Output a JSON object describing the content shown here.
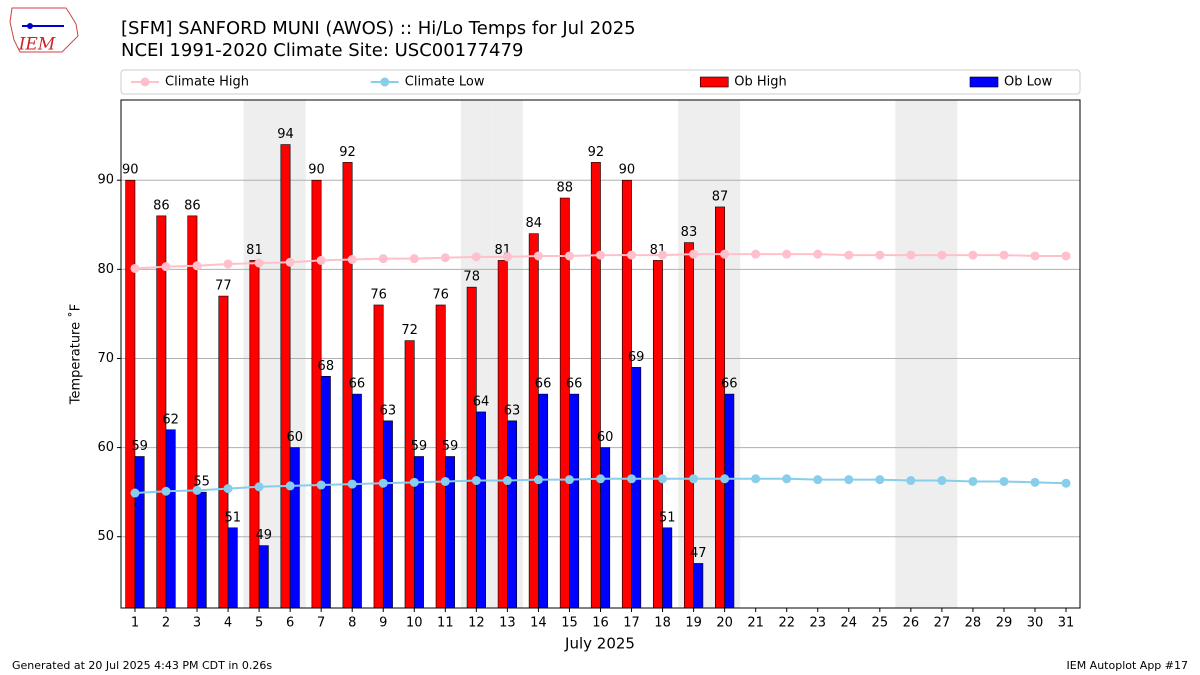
{
  "chart_data": {
    "type": "bar",
    "title": "[SFM] SANFORD MUNI (AWOS) :: Hi/Lo Temps for Jul 2025",
    "subtitle": "NCEI 1991-2020 Climate Site: USC00177479",
    "xlabel": "July 2025",
    "ylabel": "Temperature ˚F",
    "logo": "IEM",
    "footer_left": "Generated at 20 Jul 2025 4:43 PM CDT in 0.26s",
    "footer_right": "IEM Autoplot App #17",
    "legend": "top",
    "grid": true,
    "x": [
      1,
      2,
      3,
      4,
      5,
      6,
      7,
      8,
      9,
      10,
      11,
      12,
      13,
      14,
      15,
      16,
      17,
      18,
      19,
      20,
      21,
      22,
      23,
      24,
      25,
      26,
      27,
      28,
      29,
      30,
      31
    ],
    "xlim": [
      0.55,
      31.45
    ],
    "ylim": [
      42,
      99
    ],
    "yticks": [
      50,
      60,
      70,
      80,
      90
    ],
    "shaded_days": [
      5,
      6,
      12,
      13,
      19,
      20,
      26,
      27
    ],
    "series": [
      {
        "name": "Climate High",
        "type": "line",
        "color": "#ffc0cb",
        "values": [
          80.1,
          80.3,
          80.4,
          80.6,
          80.7,
          80.8,
          81.0,
          81.1,
          81.2,
          81.2,
          81.3,
          81.4,
          81.4,
          81.5,
          81.5,
          81.6,
          81.6,
          81.6,
          81.7,
          81.7,
          81.7,
          81.7,
          81.7,
          81.6,
          81.6,
          81.6,
          81.6,
          81.6,
          81.6,
          81.5,
          81.5
        ]
      },
      {
        "name": "Climate Low",
        "type": "line",
        "color": "#87ceeb",
        "values": [
          54.9,
          55.1,
          55.2,
          55.4,
          55.6,
          55.7,
          55.8,
          55.9,
          56.0,
          56.1,
          56.2,
          56.3,
          56.3,
          56.4,
          56.4,
          56.5,
          56.5,
          56.5,
          56.5,
          56.5,
          56.5,
          56.5,
          56.4,
          56.4,
          56.4,
          56.3,
          56.3,
          56.2,
          56.2,
          56.1,
          56.0
        ]
      },
      {
        "name": "Ob High",
        "type": "bar",
        "color": "#ff0000",
        "values": [
          90,
          86,
          86,
          77,
          81,
          94,
          90,
          92,
          76,
          72,
          76,
          78,
          81,
          84,
          88,
          92,
          90,
          81,
          83,
          87,
          null,
          null,
          null,
          null,
          null,
          null,
          null,
          null,
          null,
          null,
          null
        ]
      },
      {
        "name": "Ob Low",
        "type": "bar",
        "color": "#0000ff",
        "values": [
          59,
          62,
          55,
          51,
          49,
          60,
          68,
          66,
          63,
          59,
          59,
          64,
          63,
          66,
          66,
          60,
          69,
          51,
          47,
          66,
          null,
          null,
          null,
          null,
          null,
          null,
          null,
          null,
          null,
          null,
          null
        ]
      }
    ]
  }
}
